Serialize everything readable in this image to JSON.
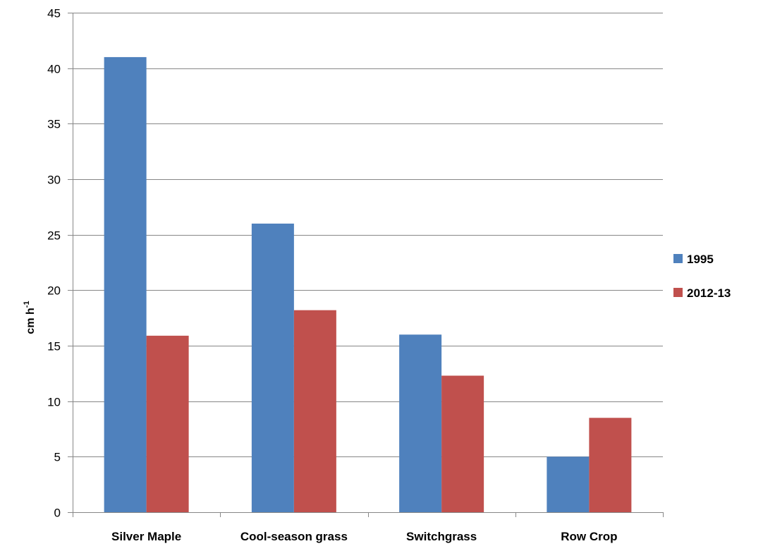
{
  "chart_data": {
    "type": "bar",
    "title": "",
    "xlabel": "",
    "ylabel": "cm h",
    "ylabel_superscript": "-1",
    "categories": [
      "Silver Maple",
      "Cool-season grass",
      "Switchgrass",
      "Row Crop"
    ],
    "series": [
      {
        "name": "1995",
        "color": "#4F81BD",
        "values": [
          41,
          26,
          16,
          5
        ]
      },
      {
        "name": "2012-13",
        "color": "#C0504D",
        "values": [
          15.9,
          18.2,
          12.3,
          8.5
        ]
      }
    ],
    "ylim": [
      0,
      45
    ],
    "yticks": [
      "0",
      "5",
      "10",
      "15",
      "20",
      "25",
      "30",
      "35",
      "40",
      "45"
    ],
    "grid": true,
    "legend": "right"
  }
}
